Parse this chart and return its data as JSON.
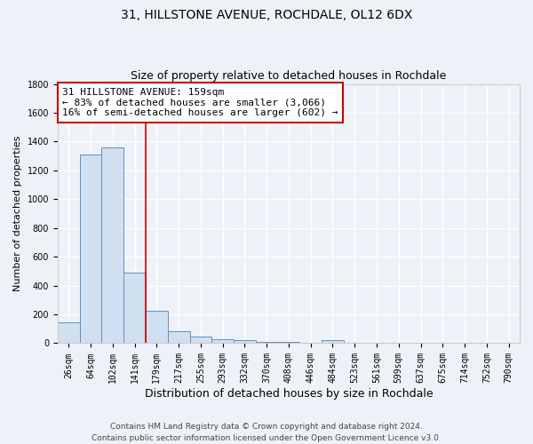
{
  "title": "31, HILLSTONE AVENUE, ROCHDALE, OL12 6DX",
  "subtitle": "Size of property relative to detached houses in Rochdale",
  "xlabel": "Distribution of detached houses by size in Rochdale",
  "ylabel": "Number of detached properties",
  "categories": [
    "26sqm",
    "64sqm",
    "102sqm",
    "141sqm",
    "179sqm",
    "217sqm",
    "255sqm",
    "293sqm",
    "332sqm",
    "370sqm",
    "408sqm",
    "446sqm",
    "484sqm",
    "523sqm",
    "561sqm",
    "599sqm",
    "637sqm",
    "675sqm",
    "714sqm",
    "752sqm",
    "790sqm"
  ],
  "values": [
    145,
    1310,
    1360,
    490,
    225,
    80,
    48,
    30,
    20,
    10,
    12,
    5,
    20,
    0,
    0,
    0,
    0,
    0,
    0,
    0,
    0
  ],
  "bar_color": "#d0e0f0",
  "bar_edge_color": "#6090c0",
  "vline_x": 3.5,
  "vline_color": "#cc0000",
  "annotation_text": "31 HILLSTONE AVENUE: 159sqm\n← 83% of detached houses are smaller (3,066)\n16% of semi-detached houses are larger (602) →",
  "annotation_box_color": "white",
  "annotation_box_edge": "#cc0000",
  "ylim": [
    0,
    1800
  ],
  "yticks": [
    0,
    200,
    400,
    600,
    800,
    1000,
    1200,
    1400,
    1600,
    1800
  ],
  "background_color": "#eef2f8",
  "plot_bg_color": "#eef2f8",
  "grid_color": "white",
  "footer": "Contains HM Land Registry data © Crown copyright and database right 2024.\nContains public sector information licensed under the Open Government Licence v3.0.",
  "title_fontsize": 10,
  "subtitle_fontsize": 9,
  "xlabel_fontsize": 9,
  "ylabel_fontsize": 8,
  "tick_fontsize": 7,
  "footer_fontsize": 6.5,
  "annot_fontsize": 8
}
